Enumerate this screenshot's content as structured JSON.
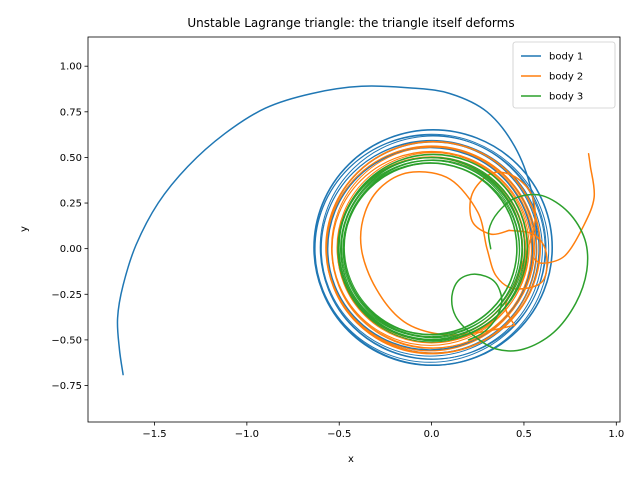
{
  "chart_data": {
    "type": "line",
    "title": "Unstable Lagrange triangle: the triangle itself deforms",
    "xlabel": "x",
    "ylabel": "y",
    "xlim": [
      -1.86,
      1.02
    ],
    "ylim": [
      -0.95,
      1.16
    ],
    "xticks": [
      -1.5,
      -1.0,
      -0.5,
      0.0,
      0.5,
      1.0
    ],
    "xtick_labels": [
      "−1.5",
      "−1.0",
      "−0.5",
      "0.0",
      "0.5",
      "1.0"
    ],
    "yticks": [
      -0.75,
      -0.5,
      -0.25,
      0.0,
      0.25,
      0.5,
      0.75,
      1.0
    ],
    "ytick_labels": [
      "−0.75",
      "−0.50",
      "−0.25",
      "0.00",
      "0.25",
      "0.50",
      "0.75",
      "1.00"
    ],
    "grid": false,
    "legend_position": "top-right",
    "series": [
      {
        "name": "body 1",
        "color": "#1f77b4",
        "rings": {
          "radii": [
            0.645,
            0.6,
            0.555
          ],
          "center": [
            0.0,
            0.0
          ]
        },
        "escape": [
          [
            0.57,
            0.05
          ],
          [
            0.54,
            0.32
          ],
          [
            0.45,
            0.56
          ],
          [
            0.3,
            0.75
          ],
          [
            0.1,
            0.85
          ],
          [
            -0.1,
            0.88
          ],
          [
            -0.38,
            0.89
          ],
          [
            -0.65,
            0.85
          ],
          [
            -0.9,
            0.77
          ],
          [
            -1.12,
            0.63
          ],
          [
            -1.32,
            0.45
          ],
          [
            -1.48,
            0.25
          ],
          [
            -1.6,
            0.02
          ],
          [
            -1.67,
            -0.2
          ],
          [
            -1.7,
            -0.38
          ],
          [
            -1.69,
            -0.55
          ],
          [
            -1.67,
            -0.69
          ]
        ]
      },
      {
        "name": "body 2",
        "color": "#ff7f0e",
        "rings": {
          "radii": [
            0.58,
            0.54,
            0.5
          ],
          "center": [
            0.0,
            0.0
          ]
        },
        "escape": [
          [
            0.55,
            -0.05
          ],
          [
            0.6,
            -0.08
          ],
          [
            0.72,
            -0.04
          ],
          [
            0.82,
            0.12
          ],
          [
            0.88,
            0.28
          ],
          [
            0.86,
            0.45
          ],
          [
            0.85,
            0.52
          ]
        ],
        "loop": [
          [
            0.45,
            -0.42
          ],
          [
            0.25,
            -0.46
          ],
          [
            0.05,
            -0.47
          ],
          [
            -0.15,
            -0.4
          ],
          [
            -0.3,
            -0.22
          ],
          [
            -0.38,
            0.0
          ],
          [
            -0.36,
            0.2
          ],
          [
            -0.26,
            0.35
          ],
          [
            -0.1,
            0.42
          ],
          [
            0.1,
            0.38
          ],
          [
            0.25,
            0.2
          ],
          [
            0.3,
            0.0
          ],
          [
            0.35,
            -0.15
          ],
          [
            0.45,
            -0.22
          ],
          [
            0.6,
            -0.18
          ],
          [
            0.62,
            -0.02
          ],
          [
            0.55,
            0.08
          ],
          [
            0.42,
            0.1
          ]
        ],
        "tail": [
          [
            0.42,
            0.1
          ],
          [
            0.32,
            0.08
          ],
          [
            0.22,
            0.15
          ],
          [
            0.22,
            0.3
          ],
          [
            0.32,
            0.41
          ],
          [
            0.44,
            0.4
          ],
          [
            0.54,
            0.3
          ],
          [
            0.56,
            0.15
          ],
          [
            0.52,
            0.0
          ],
          [
            0.45,
            -0.2
          ],
          [
            0.4,
            -0.32
          ],
          [
            0.45,
            -0.42
          ]
        ]
      },
      {
        "name": "body 3",
        "color": "#2ca02c",
        "rings": {
          "radii": [
            0.51,
            0.47
          ],
          "center": [
            0.0,
            0.0
          ]
        },
        "escape": [
          [
            0.32,
            0.0
          ],
          [
            0.31,
            0.1
          ],
          [
            0.36,
            0.2
          ],
          [
            0.46,
            0.28
          ],
          [
            0.6,
            0.29
          ],
          [
            0.74,
            0.2
          ],
          [
            0.83,
            0.05
          ],
          [
            0.84,
            -0.12
          ],
          [
            0.78,
            -0.3
          ],
          [
            0.66,
            -0.46
          ],
          [
            0.5,
            -0.55
          ],
          [
            0.35,
            -0.55
          ],
          [
            0.22,
            -0.47
          ],
          [
            0.13,
            -0.37
          ],
          [
            0.11,
            -0.26
          ],
          [
            0.15,
            -0.17
          ],
          [
            0.24,
            -0.14
          ],
          [
            0.34,
            -0.18
          ],
          [
            0.38,
            -0.28
          ],
          [
            0.35,
            -0.38
          ],
          [
            0.28,
            -0.46
          ],
          [
            0.2,
            -0.5
          ]
        ]
      }
    ]
  }
}
